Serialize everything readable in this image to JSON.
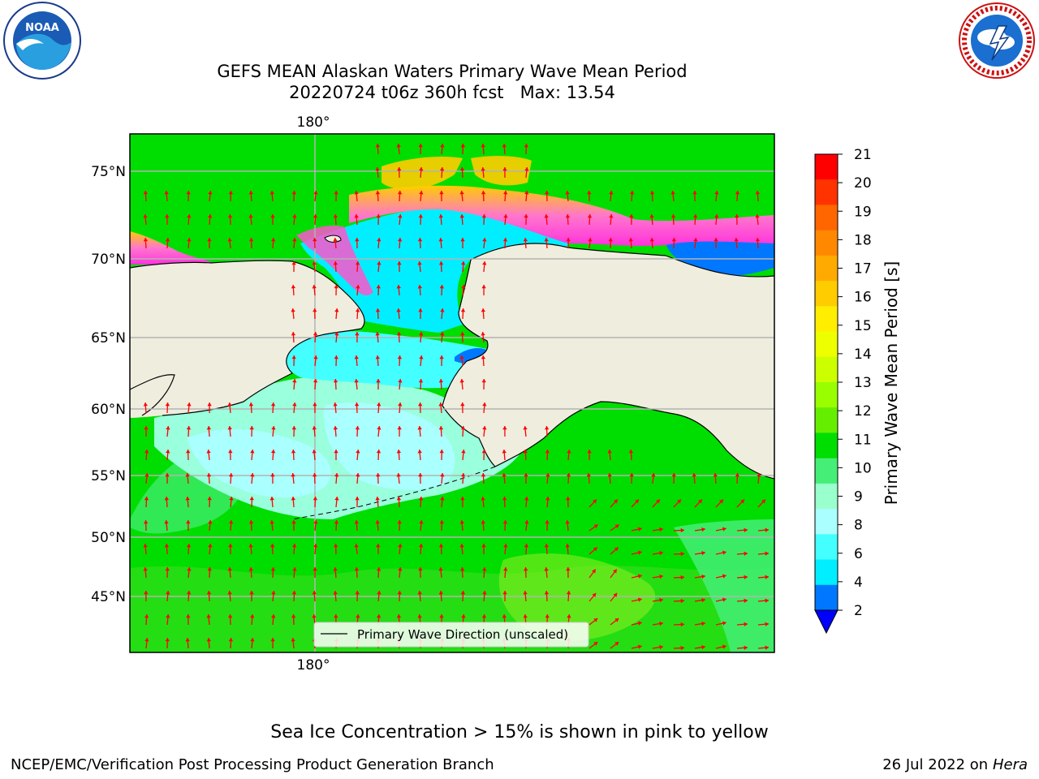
{
  "title_line1": "GEFS MEAN Alaskan Waters Primary Wave Mean Period",
  "title_line2": "20220724 t06z 360h fcst   Max: 13.54",
  "logos": {
    "left": "noaa-logo",
    "right": "nws-logo"
  },
  "map": {
    "lat_ticks": [
      "75°N",
      "70°N",
      "65°N",
      "60°N",
      "55°N",
      "50°N",
      "45°N"
    ],
    "lon_tick_top": "180°",
    "lon_tick_bottom": "180°",
    "legend_label": "Primary Wave Direction (unscaled)",
    "colors": {
      "land": "#efedde",
      "arrow": "#ff0000",
      "coast": "#000000",
      "grid": "#b3b3b3"
    }
  },
  "colorbar": {
    "title": "Primary Wave Mean Period [s]",
    "tick_labels": [
      "21",
      "20",
      "19",
      "18",
      "17",
      "16",
      "15",
      "14",
      "13",
      "12",
      "11",
      "10",
      "9",
      "8",
      "6",
      "4",
      "2"
    ],
    "colors": [
      "#ff0000",
      "#ff3300",
      "#ff6600",
      "#ff8800",
      "#ffaa00",
      "#ffcc00",
      "#ffee00",
      "#eeff00",
      "#ccff00",
      "#99ff00",
      "#66ee00",
      "#00dd00",
      "#44ee77",
      "#99ffcc",
      "#aaffff",
      "#44ffff",
      "#00eeff",
      "#0077ff"
    ],
    "extend_color": "#0000ff"
  },
  "ice_note": "Sea Ice Concentration > 15% is shown in pink to yellow",
  "footer_left": "NCEP/EMC/Verification Post Processing Product Generation Branch",
  "footer_right_date": "26 Jul 2022 on ",
  "footer_right_host": "Hera"
}
